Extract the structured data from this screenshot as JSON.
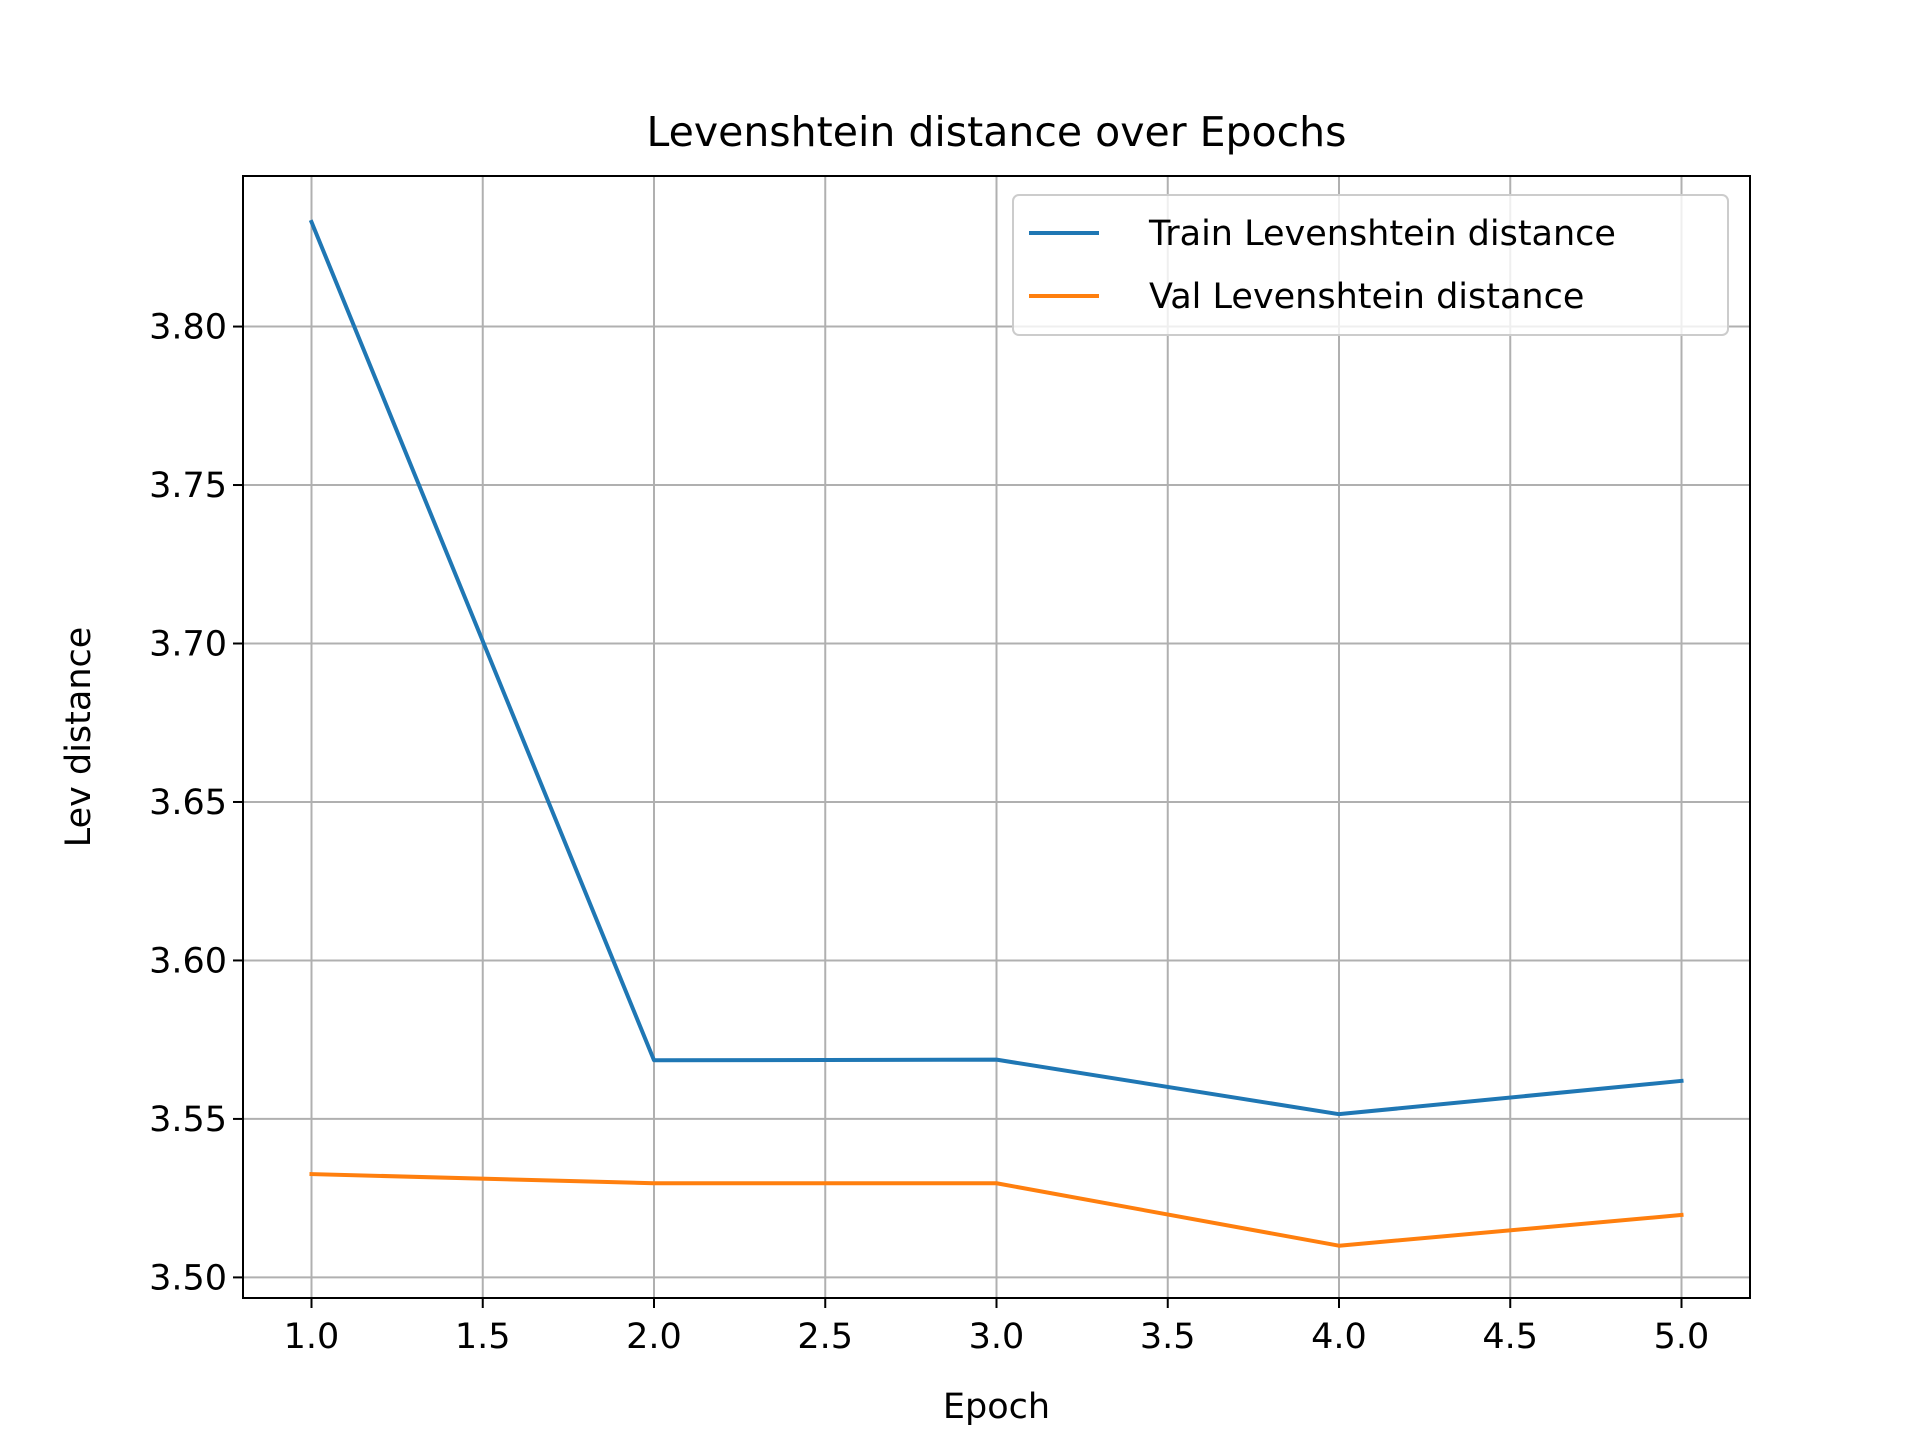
{
  "chart_data": {
    "type": "line",
    "title": "Levenshtein distance over Epochs",
    "xlabel": "Epoch",
    "ylabel": "Lev distance",
    "x": [
      1,
      2,
      3,
      4,
      5
    ],
    "xlim": [
      0.8,
      5.2
    ],
    "ylim": [
      3.4935,
      3.8475
    ],
    "xticks": [
      1.0,
      1.5,
      2.0,
      2.5,
      3.0,
      3.5,
      4.0,
      4.5,
      5.0
    ],
    "xtick_labels": [
      "1.0",
      "1.5",
      "2.0",
      "2.5",
      "3.0",
      "3.5",
      "4.0",
      "4.5",
      "5.0"
    ],
    "yticks": [
      3.5,
      3.55,
      3.6,
      3.65,
      3.7,
      3.75,
      3.8
    ],
    "ytick_labels": [
      "3.50",
      "3.55",
      "3.60",
      "3.65",
      "3.70",
      "3.75",
      "3.80"
    ],
    "grid": true,
    "legend_position": "top-right",
    "series": [
      {
        "name": "Train Levenshtein distance",
        "color": "#1f77b4",
        "values": [
          3.833,
          3.5685,
          3.5687,
          3.5515,
          3.562
        ]
      },
      {
        "name": "Val Levenshtein distance",
        "color": "#ff7f0e",
        "values": [
          3.5326,
          3.5297,
          3.5297,
          3.51,
          3.5197
        ]
      }
    ]
  }
}
